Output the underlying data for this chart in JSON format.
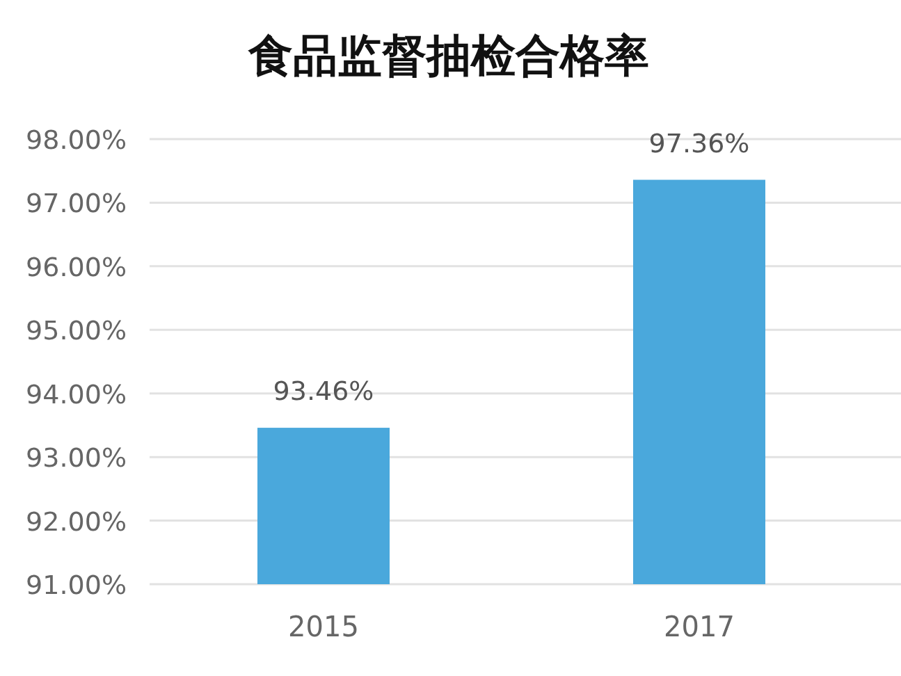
{
  "chart_data": {
    "type": "bar",
    "title": "食品监督抽检合格率",
    "categories": [
      "2015",
      "2017"
    ],
    "values": [
      93.46,
      97.36
    ],
    "color": "#4aa8dc",
    "value_labels": [
      "93.46%",
      "97.36%"
    ],
    "ylim": [
      91,
      98
    ],
    "yticks": [
      {
        "value": 91,
        "label": "91.00%"
      },
      {
        "value": 92,
        "label": "92.00%"
      },
      {
        "value": 93,
        "label": "93.00%"
      },
      {
        "value": 94,
        "label": "94.00%"
      },
      {
        "value": 95,
        "label": "95.00%"
      },
      {
        "value": 96,
        "label": "96.00%"
      },
      {
        "value": 97,
        "label": "97.00%"
      },
      {
        "value": 98,
        "label": "98.00%"
      }
    ],
    "grid": "y"
  }
}
